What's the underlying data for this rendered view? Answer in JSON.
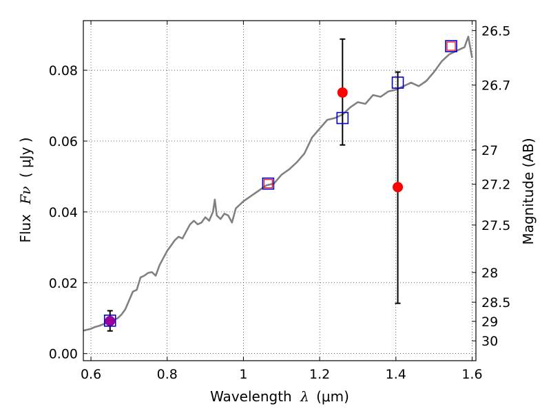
{
  "chart_data": {
    "type": "line",
    "xlabel_text": "Wavelength",
    "xlabel_symbol": "λ",
    "xlabel_unit": "(μm)",
    "ylabel_text": "Flux",
    "ylabel_symbol": "Fν",
    "ylabel_unit": "( μJy )",
    "y2label": "Magnitude (AB)",
    "xlim": [
      0.58,
      1.61
    ],
    "ylim": [
      -0.002,
      0.094
    ],
    "xticks": [
      0.6,
      0.8,
      1.0,
      1.2,
      1.4,
      1.6
    ],
    "xtick_labels": [
      "0.6",
      "0.8",
      "1",
      "1.2",
      "1.4",
      "1.6"
    ],
    "yticks": [
      0.0,
      0.02,
      0.04,
      0.06,
      0.08
    ],
    "ytick_labels": [
      "0.00",
      "0.02",
      "0.04",
      "0.06",
      "0.08"
    ],
    "grid": true,
    "grid_style": "dotted",
    "y2_ticks": [
      {
        "label": "26.5",
        "flux": 0.0912
      },
      {
        "label": "26.7",
        "flux": 0.0758
      },
      {
        "label": "27",
        "flux": 0.0575
      },
      {
        "label": "27.2",
        "flux": 0.0478
      },
      {
        "label": "27.5",
        "flux": 0.0363
      },
      {
        "label": "28",
        "flux": 0.0229
      },
      {
        "label": "28.5",
        "flux": 0.0145
      },
      {
        "label": "29",
        "flux": 0.0091
      },
      {
        "label": "30",
        "flux": 0.0036
      }
    ],
    "series": [
      {
        "role": "model_spectrum",
        "color": "#808080",
        "x": [
          0.58,
          0.6,
          0.61,
          0.62,
          0.63,
          0.64,
          0.65,
          0.66,
          0.67,
          0.68,
          0.69,
          0.7,
          0.71,
          0.72,
          0.73,
          0.74,
          0.75,
          0.76,
          0.77,
          0.78,
          0.79,
          0.8,
          0.81,
          0.82,
          0.83,
          0.84,
          0.85,
          0.86,
          0.87,
          0.88,
          0.89,
          0.9,
          0.91,
          0.92,
          0.925,
          0.93,
          0.94,
          0.95,
          0.96,
          0.97,
          0.98,
          0.99,
          1.0,
          1.02,
          1.04,
          1.06,
          1.08,
          1.1,
          1.12,
          1.14,
          1.16,
          1.18,
          1.2,
          1.22,
          1.24,
          1.26,
          1.28,
          1.3,
          1.32,
          1.34,
          1.36,
          1.38,
          1.4,
          1.42,
          1.44,
          1.46,
          1.48,
          1.5,
          1.52,
          1.54,
          1.56,
          1.58,
          1.59,
          1.6
        ],
        "y": [
          0.0065,
          0.007,
          0.0075,
          0.0078,
          0.0082,
          0.0086,
          0.009,
          0.0095,
          0.01,
          0.011,
          0.0125,
          0.015,
          0.0175,
          0.018,
          0.0215,
          0.022,
          0.0228,
          0.023,
          0.022,
          0.025,
          0.027,
          0.029,
          0.0305,
          0.032,
          0.033,
          0.0325,
          0.0345,
          0.0365,
          0.0375,
          0.0365,
          0.037,
          0.0385,
          0.0375,
          0.04,
          0.0435,
          0.039,
          0.038,
          0.0395,
          0.039,
          0.037,
          0.041,
          0.042,
          0.043,
          0.0445,
          0.046,
          0.0475,
          0.048,
          0.0505,
          0.052,
          0.054,
          0.0565,
          0.061,
          0.0635,
          0.066,
          0.0665,
          0.0675,
          0.0695,
          0.071,
          0.0705,
          0.073,
          0.0725,
          0.074,
          0.0745,
          0.0755,
          0.0765,
          0.0755,
          0.077,
          0.0795,
          0.0825,
          0.0845,
          0.0855,
          0.0865,
          0.0895,
          0.0835
        ]
      },
      {
        "role": "model_photometry",
        "marker": "open-square",
        "color": "#0000cc",
        "x": [
          0.65,
          1.065,
          1.26,
          1.405,
          1.545
        ],
        "y": [
          0.0093,
          0.048,
          0.0665,
          0.0765,
          0.0868
        ]
      },
      {
        "role": "inner_square_markers",
        "marker": "open-square-small",
        "color": "#ff0000",
        "x": [
          1.065,
          1.545
        ],
        "y": [
          0.048,
          0.0868
        ]
      },
      {
        "role": "observed_photometry",
        "marker": "filled-circle",
        "color": "#ff0000",
        "x": [
          0.65,
          1.26,
          1.405
        ],
        "y": [
          0.0092,
          0.0737,
          0.047
        ],
        "yerr_low": [
          0.0064,
          0.0589,
          0.0142
        ],
        "yerr_high": [
          0.0121,
          0.0888,
          0.0795
        ],
        "point_colors": [
          "#990099",
          "#ff0000",
          "#ff0000"
        ]
      }
    ]
  }
}
